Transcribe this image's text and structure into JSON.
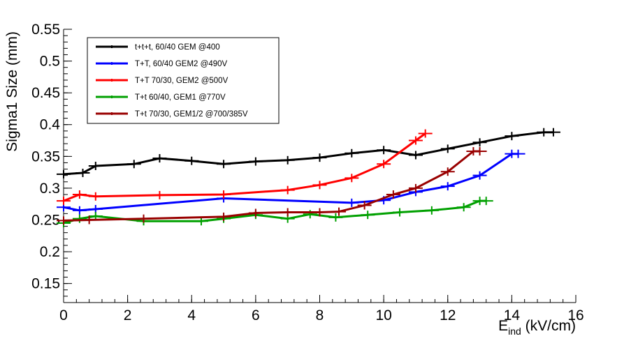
{
  "chart_data": {
    "type": "line",
    "xlabel_main": "E",
    "xlabel_sub": "ind",
    "xlabel_unit": " (kV/cm)",
    "ylabel": "Sigma1 Size (mm)",
    "xlim": [
      0,
      16
    ],
    "ylim": [
      0.12,
      0.55
    ],
    "x_ticks": [
      0,
      2,
      4,
      6,
      8,
      10,
      12,
      14,
      16
    ],
    "y_ticks": [
      0.15,
      0.2,
      0.25,
      0.3,
      0.35,
      0.4,
      0.45,
      0.5,
      0.55
    ],
    "x_minor_step": 0.4,
    "y_minor_step": 0.01,
    "grid": false,
    "legend_position": "top-left",
    "series": [
      {
        "name": "t+t+t, 60/40 GEM @400",
        "color": "#000000",
        "x": [
          0,
          0.6,
          1,
          2.2,
          3,
          4,
          5,
          6,
          7,
          8,
          9,
          10,
          11,
          12,
          13,
          14,
          15,
          15.3
        ],
        "y": [
          0.322,
          0.324,
          0.335,
          0.338,
          0.347,
          0.343,
          0.338,
          0.342,
          0.344,
          0.348,
          0.355,
          0.36,
          0.352,
          0.362,
          0.372,
          0.382,
          0.388,
          0.388
        ]
      },
      {
        "name": "T+T, 60/40 GEM2 @490V",
        "color": "#0000ff",
        "x": [
          0,
          0.5,
          1,
          5,
          9,
          10,
          11,
          12,
          13,
          14,
          14.2
        ],
        "y": [
          0.27,
          0.265,
          0.267,
          0.284,
          0.277,
          0.281,
          0.294,
          0.303,
          0.32,
          0.354,
          0.354
        ]
      },
      {
        "name": "T+T 70/30, GEM2 @500V",
        "color": "#ff0000",
        "x": [
          0,
          0.5,
          1,
          3,
          5,
          7,
          8,
          9,
          10,
          11,
          11.3
        ],
        "y": [
          0.28,
          0.29,
          0.287,
          0.289,
          0.29,
          0.297,
          0.305,
          0.316,
          0.338,
          0.375,
          0.386
        ]
      },
      {
        "name": "T+t 60/40, GEM1 @770V",
        "color": "#00a000",
        "x": [
          0,
          0.5,
          1,
          2.5,
          4.3,
          5,
          6,
          7,
          7.7,
          8.5,
          9.5,
          10.5,
          11.5,
          12.5,
          13,
          13.2
        ],
        "y": [
          0.245,
          0.252,
          0.256,
          0.248,
          0.248,
          0.252,
          0.258,
          0.252,
          0.259,
          0.254,
          0.258,
          0.262,
          0.265,
          0.27,
          0.28,
          0.28
        ]
      },
      {
        "name": "T+t 70/30, GEM1/2 @700/385V",
        "color": "#990000",
        "x": [
          0,
          0.8,
          2.5,
          5,
          6,
          7,
          8,
          8.6,
          9.4,
          10.3,
          11,
          12,
          12.8,
          13
        ],
        "y": [
          0.249,
          0.25,
          0.252,
          0.255,
          0.261,
          0.262,
          0.262,
          0.263,
          0.273,
          0.29,
          0.3,
          0.326,
          0.358,
          0.358
        ]
      }
    ]
  }
}
